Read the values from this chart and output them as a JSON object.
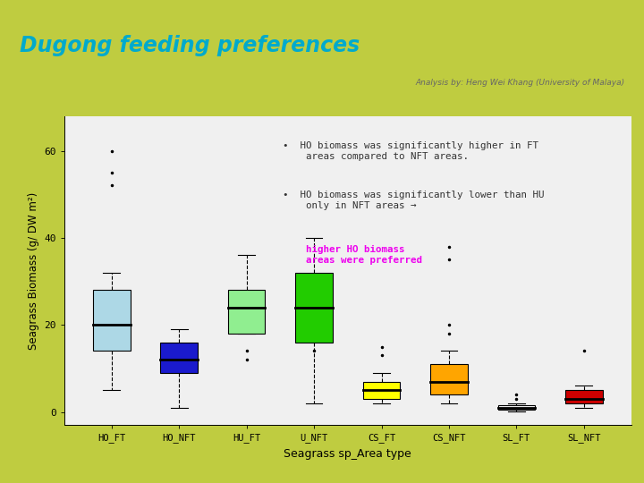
{
  "title": "Dugong feeding preferences",
  "subtitle": "Analysis by: Heng Wei Khang (University of Malaya)",
  "xlabel": "Seagrass sp_Area type",
  "ylabel": "Seagrass Biomass (g/ DW m²)",
  "categories": [
    "HO_FT",
    "HO_NFT",
    "HU_FT",
    "U_NFT",
    "CS_FT",
    "CS_NFT",
    "SL_FT",
    "SL_NFT"
  ],
  "box_colors": [
    "#ADD8E6",
    "#1A1ACD",
    "#90EE90",
    "#22CC00",
    "#FFFF00",
    "#FFA500",
    "#F8F8F8",
    "#CC0000"
  ],
  "boxes": [
    {
      "q1": 14,
      "median": 20,
      "q3": 28,
      "whisker_low": 5,
      "whisker_high": 32,
      "fliers": [
        52,
        55,
        60
      ]
    },
    {
      "q1": 9,
      "median": 12,
      "q3": 16,
      "whisker_low": 1,
      "whisker_high": 19,
      "fliers": []
    },
    {
      "q1": 18,
      "median": 24,
      "q3": 28,
      "whisker_low": 18,
      "whisker_high": 36,
      "fliers": [
        12,
        14
      ]
    },
    {
      "q1": 16,
      "median": 24,
      "q3": 32,
      "whisker_low": 2,
      "whisker_high": 40,
      "fliers": [
        14
      ]
    },
    {
      "q1": 3,
      "median": 5,
      "q3": 7,
      "whisker_low": 2,
      "whisker_high": 9,
      "fliers": [
        13,
        15
      ]
    },
    {
      "q1": 4,
      "median": 7,
      "q3": 11,
      "whisker_low": 2,
      "whisker_high": 14,
      "fliers": [
        18,
        20,
        35,
        38
      ]
    },
    {
      "q1": 0.5,
      "median": 1,
      "q3": 1.5,
      "whisker_low": 0.2,
      "whisker_high": 2,
      "fliers": [
        3,
        4
      ]
    },
    {
      "q1": 2,
      "median": 3,
      "q3": 5,
      "whisker_low": 1,
      "whisker_high": 6,
      "fliers": [
        14
      ]
    }
  ],
  "ylim": [
    -3,
    68
  ],
  "yticks": [
    0,
    20,
    40,
    60
  ],
  "ytick_labels": [
    "0",
    "20",
    "40",
    "60"
  ],
  "bg_color": "#F0F0F0",
  "outer_bg": "#BFCC40",
  "header_bg": "#FFFFFF",
  "title_color": "#00AACC",
  "subtitle_color": "#666666",
  "annotation_bg": "#E0DECE",
  "annotation_color": "#333333",
  "annotation_highlight_color": "#EE00EE",
  "border_color": "#BFCC40"
}
